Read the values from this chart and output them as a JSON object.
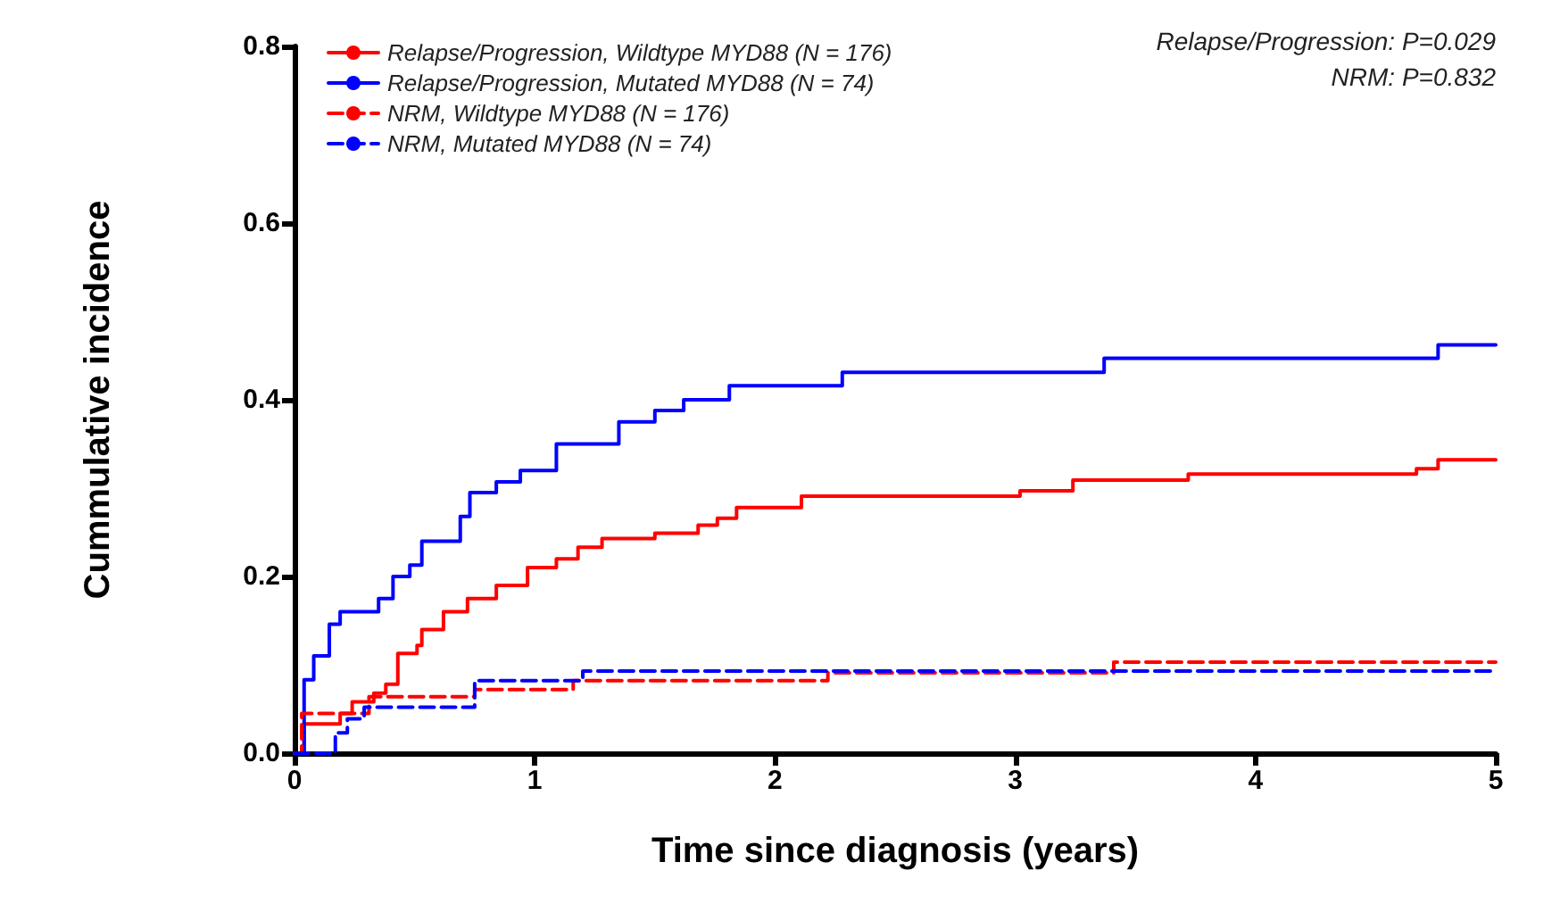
{
  "chart_data": {
    "type": "step",
    "xlabel": "Time since diagnosis (years)",
    "ylabel": "Cummulative incidence",
    "xlim": [
      0,
      5
    ],
    "ylim": [
      0,
      0.8
    ],
    "xticks": [
      0,
      1,
      2,
      3,
      4,
      5
    ],
    "yticks": [
      {
        "value": 0,
        "label": "0.0"
      },
      {
        "value": 0.2,
        "label": "0.2"
      },
      {
        "value": 0.4,
        "label": "0.4"
      },
      {
        "value": 0.6,
        "label": "0.6"
      },
      {
        "value": 0.8,
        "label": "0.8"
      }
    ],
    "grid": false,
    "legend": "top left",
    "marker": "none",
    "annotations": [
      "Relapse/Progression: P=0.029",
      "NRM: P=0.832"
    ],
    "series": [
      {
        "name": "Relapse/Progression, Wildtype MYD88 (N = 176)",
        "color": "#ff0000",
        "line_style": "solid",
        "x": [
          0,
          0.04,
          0.19,
          0.24,
          0.33,
          0.38,
          0.43,
          0.51,
          0.53,
          0.62,
          0.72,
          0.84,
          0.97,
          1.09,
          1.18,
          1.28,
          1.5,
          1.68,
          1.76,
          1.84,
          2.11,
          3.02,
          3.24,
          3.72,
          4.67,
          4.76,
          5
        ],
        "values": [
          0,
          0.033,
          0.045,
          0.058,
          0.068,
          0.078,
          0.113,
          0.122,
          0.14,
          0.16,
          0.175,
          0.19,
          0.21,
          0.22,
          0.233,
          0.243,
          0.249,
          0.258,
          0.266,
          0.278,
          0.291,
          0.297,
          0.309,
          0.316,
          0.322,
          0.332,
          0.332
        ]
      },
      {
        "name": "Relapse/Progression, Mutated MYD88 (N = 74)",
        "color": "#0000ff",
        "line_style": "solid",
        "x": [
          0,
          0.04,
          0.08,
          0.145,
          0.19,
          0.35,
          0.41,
          0.48,
          0.53,
          0.69,
          0.73,
          0.84,
          0.94,
          1.09,
          1.35,
          1.5,
          1.62,
          1.81,
          2.28,
          3.37,
          4.76,
          5
        ],
        "values": [
          0,
          0.083,
          0.11,
          0.146,
          0.16,
          0.175,
          0.2,
          0.213,
          0.24,
          0.268,
          0.295,
          0.307,
          0.32,
          0.35,
          0.375,
          0.388,
          0.4,
          0.416,
          0.431,
          0.447,
          0.462,
          0.462
        ]
      },
      {
        "name": "NRM, Wildtype MYD88 (N = 176)",
        "color": "#ff0000",
        "line_style": "dashed",
        "x": [
          0,
          0.03,
          0.31,
          0.75,
          1.16,
          2.22,
          3.41,
          5
        ],
        "values": [
          0,
          0.045,
          0.064,
          0.072,
          0.082,
          0.091,
          0.103,
          0.103
        ]
      },
      {
        "name": "NRM, Mutated MYD88 (N = 74)",
        "color": "#0000ff",
        "line_style": "dashed",
        "x": [
          0,
          0.09,
          0.17,
          0.22,
          0.29,
          0.75,
          1.2,
          5
        ],
        "values": [
          0,
          0,
          0.023,
          0.039,
          0.052,
          0.082,
          0.093,
          0.093
        ]
      }
    ]
  }
}
